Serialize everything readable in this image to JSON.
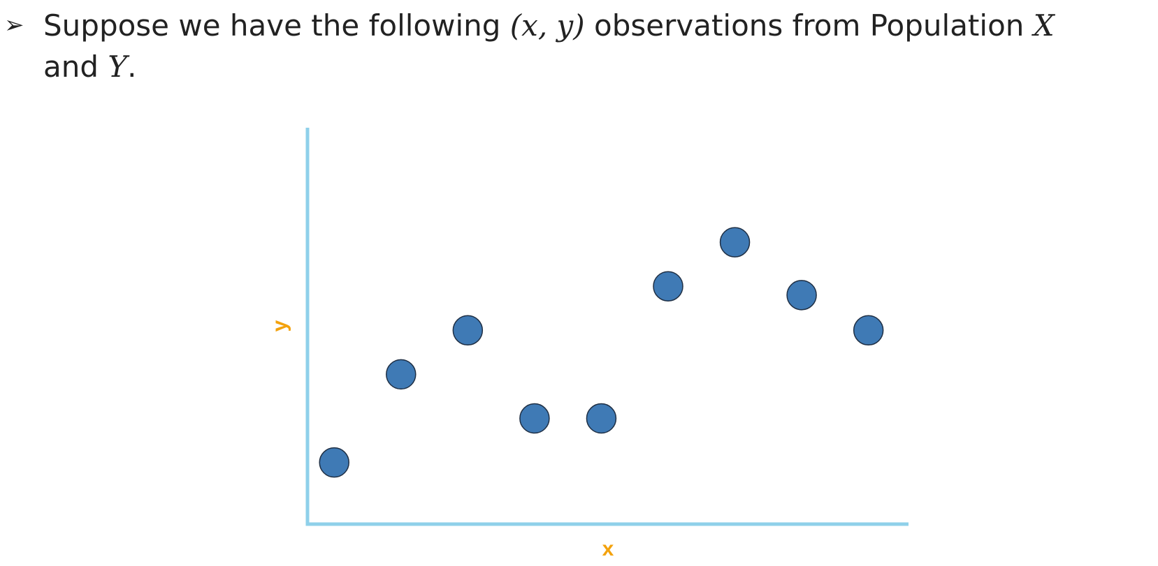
{
  "slide": {
    "bullet_symbol": "➢",
    "line1_part1": "Suppose we have the following ",
    "line1_math": "(x, y)",
    "line1_part2": " observations from Population ",
    "line1_var_x": "X",
    "line2_part1": "and ",
    "line2_var_y": "Y",
    "line2_end": "."
  },
  "colors": {
    "axis": "#8fd0ea",
    "label": "#f3a20d",
    "point_fill": "#3f7ab5",
    "point_stroke": "#1f2f44"
  },
  "chart_data": {
    "type": "scatter",
    "xlabel": "x",
    "ylabel": "y",
    "xlim": [
      0,
      9
    ],
    "ylim": [
      0,
      9
    ],
    "grid": false,
    "ticks": false,
    "points": [
      {
        "x": 0.4,
        "y": 1.4
      },
      {
        "x": 1.4,
        "y": 3.4
      },
      {
        "x": 2.4,
        "y": 4.4
      },
      {
        "x": 3.4,
        "y": 2.4
      },
      {
        "x": 4.4,
        "y": 2.4
      },
      {
        "x": 5.4,
        "y": 5.4
      },
      {
        "x": 6.4,
        "y": 6.4
      },
      {
        "x": 7.4,
        "y": 5.2
      },
      {
        "x": 8.4,
        "y": 4.4
      }
    ]
  }
}
